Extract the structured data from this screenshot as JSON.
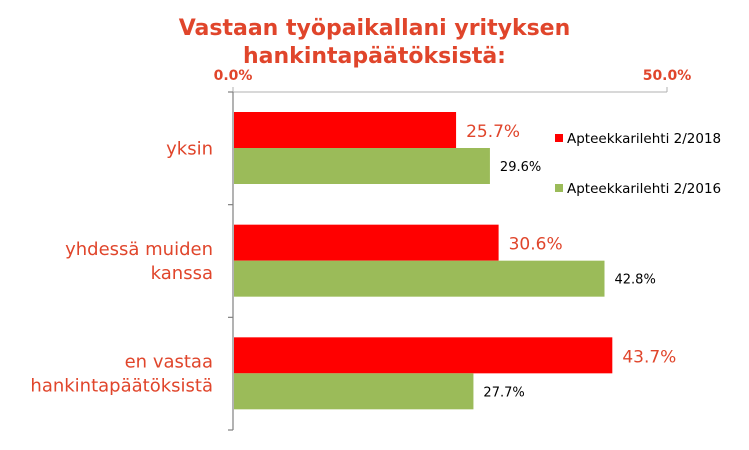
{
  "chart_data": {
    "type": "bar",
    "orientation": "horizontal",
    "title_lines": [
      "Vastaan työpaikallani yrityksen",
      "hankintapäätöksistä:"
    ],
    "categories": [
      [
        "yksin"
      ],
      [
        "yhdessä muiden",
        "kanssa"
      ],
      [
        "en vastaa",
        "hankintapäätöksistä"
      ]
    ],
    "series": [
      {
        "name": "Apteekkarilehti 2/2018",
        "values": [
          25.7,
          30.6,
          43.7
        ],
        "labels": [
          "25.7%",
          "30.6%",
          "43.7%"
        ],
        "color": "#ff0000",
        "label_color": "#e0452b"
      },
      {
        "name": "Apteekkarilehti 2/2016",
        "values": [
          29.6,
          42.8,
          27.7
        ],
        "labels": [
          "29.6%",
          "42.8%",
          "27.7%"
        ],
        "color": "#9bbb59",
        "label_color": "#000000"
      }
    ],
    "xlim": [
      0,
      50
    ],
    "x_ticks": [
      "0.0%",
      "50.0%"
    ],
    "axis_position": "top",
    "legend_position": "right",
    "grid": false
  }
}
